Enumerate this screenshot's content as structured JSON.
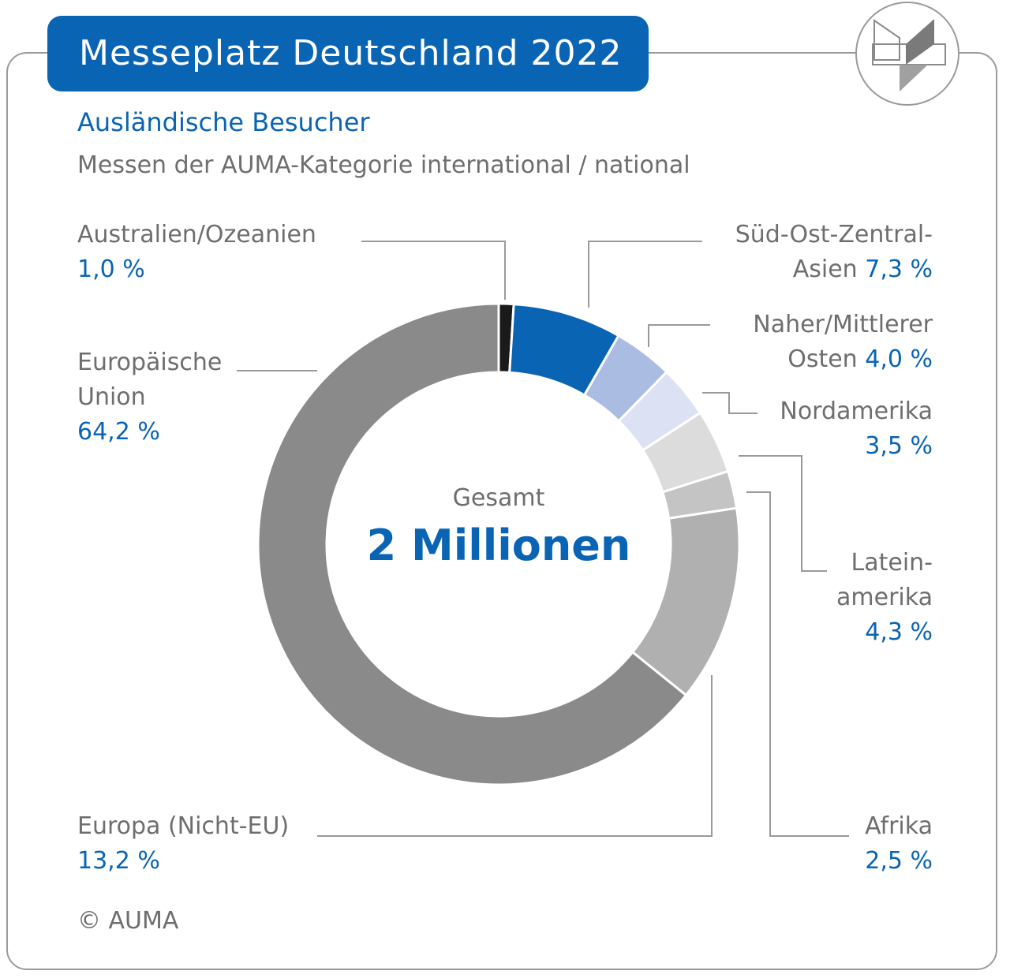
{
  "header": {
    "title": "Messeplatz Deutschland 2022",
    "subtitle": "Ausländische Besucher",
    "subtitle2": "Messen der AUMA-Kategorie international / national"
  },
  "center": {
    "label": "Gesamt",
    "value": "2 Millionen"
  },
  "copyright": "© AUMA",
  "colors": {
    "accent": "#0a64b4",
    "text_gray": "#6e6e6e",
    "frame": "#9a9a9a"
  },
  "labels": {
    "australien": {
      "line1": "Australien/Ozeanien",
      "pct": "1,0 %"
    },
    "sued_ost": {
      "line1": "Süd-Ost-Zentral-",
      "line2": "Asien",
      "pct": "7,3 %"
    },
    "naher": {
      "line1": "Naher/Mittlerer",
      "line2": "Osten",
      "pct": "4,0 %"
    },
    "nordamerika": {
      "line1": "Nordamerika",
      "pct": "3,5 %"
    },
    "lateinamerika": {
      "line1": "Latein-",
      "line2": "amerika",
      "pct": "4,3 %"
    },
    "afrika": {
      "line1": "Afrika",
      "pct": "2,5 %"
    },
    "europa_nicht_eu": {
      "line1": "Europa (Nicht-EU)",
      "pct": "13,2 %"
    },
    "eu": {
      "line1": "Europäische",
      "line2": "Union",
      "pct": "64,2 %"
    }
  },
  "chart_data": {
    "type": "pie",
    "variant": "donut",
    "title": "Messeplatz Deutschland 2022",
    "subtitle": "Ausländische Besucher",
    "total": "2 Millionen",
    "unit": "%",
    "categories": [
      "Australien/Ozeanien",
      "Süd-Ost-Zentral-Asien",
      "Naher/Mittlerer Osten",
      "Nordamerika",
      "Lateinamerika",
      "Afrika",
      "Europa (Nicht-EU)",
      "Europäische Union"
    ],
    "values": [
      1.0,
      7.3,
      4.0,
      3.5,
      4.3,
      2.5,
      13.2,
      64.2
    ],
    "colors": [
      "#1a1a1a",
      "#0a64b4",
      "#aabce2",
      "#dce2f4",
      "#dcdcdc",
      "#c4c4c4",
      "#b0b0b0",
      "#8a8a8a"
    ]
  }
}
